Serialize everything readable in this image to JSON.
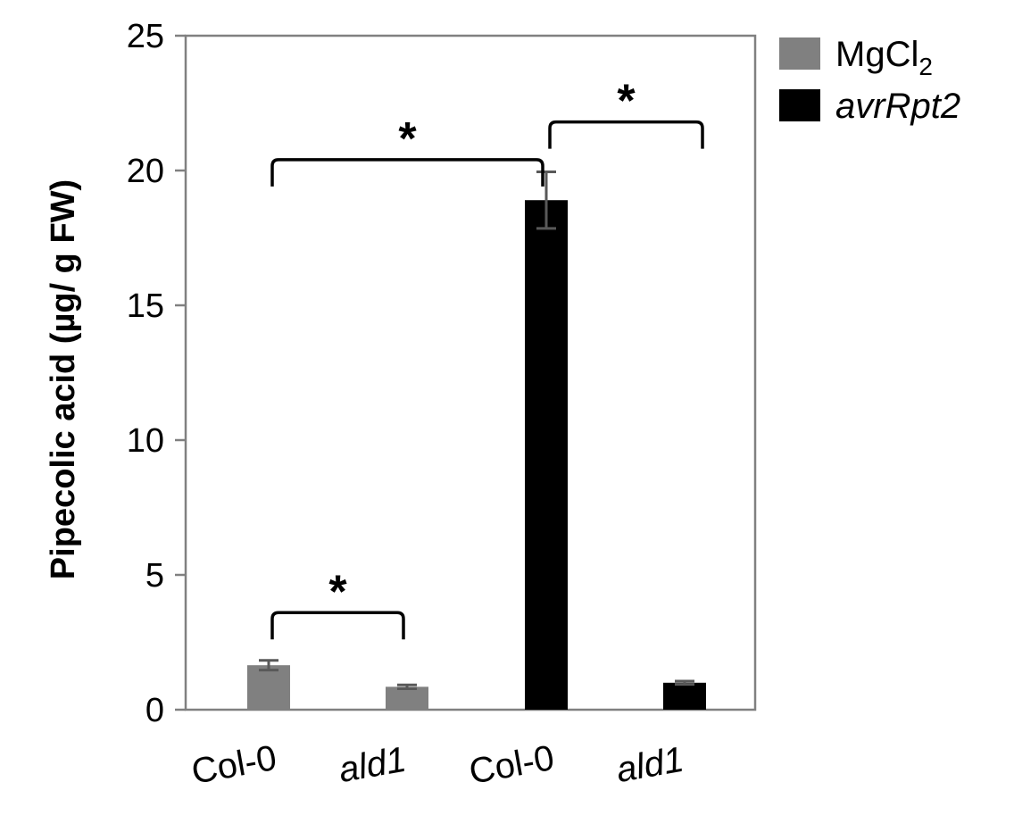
{
  "chart_data": {
    "type": "bar",
    "ylabel": "Pipecolic acid (µg/ g FW)",
    "ylim": [
      0,
      25
    ],
    "yticks": [
      0,
      5,
      10,
      15,
      20,
      25
    ],
    "categories": [
      "Col-0",
      "ald1",
      "Col-0",
      "ald1"
    ],
    "categories_italic": [
      false,
      true,
      false,
      true
    ],
    "series": [
      {
        "name": "MgCl2",
        "legend_main": "MgCl",
        "legend_sub": "2",
        "color": "#808080",
        "values": [
          1.65,
          0.85,
          null,
          null
        ],
        "errors": [
          0.18,
          0.07,
          null,
          null
        ]
      },
      {
        "name": "avrRpt2",
        "legend_main": "avrRpt2",
        "legend_italic": true,
        "color": "#000000",
        "values": [
          null,
          null,
          18.9,
          1.0
        ],
        "errors": [
          null,
          null,
          1.05,
          0.06
        ]
      }
    ],
    "error_bar_color": "#595959",
    "legend_position": "top-right",
    "grid": false,
    "significance": [
      {
        "from": 0,
        "to": 1,
        "y": 3.6,
        "label": "*"
      },
      {
        "from": 0,
        "to": 2,
        "y": 20.4,
        "label": "*"
      },
      {
        "from": 2,
        "to": 3,
        "y": 21.8,
        "label": "*"
      }
    ]
  }
}
